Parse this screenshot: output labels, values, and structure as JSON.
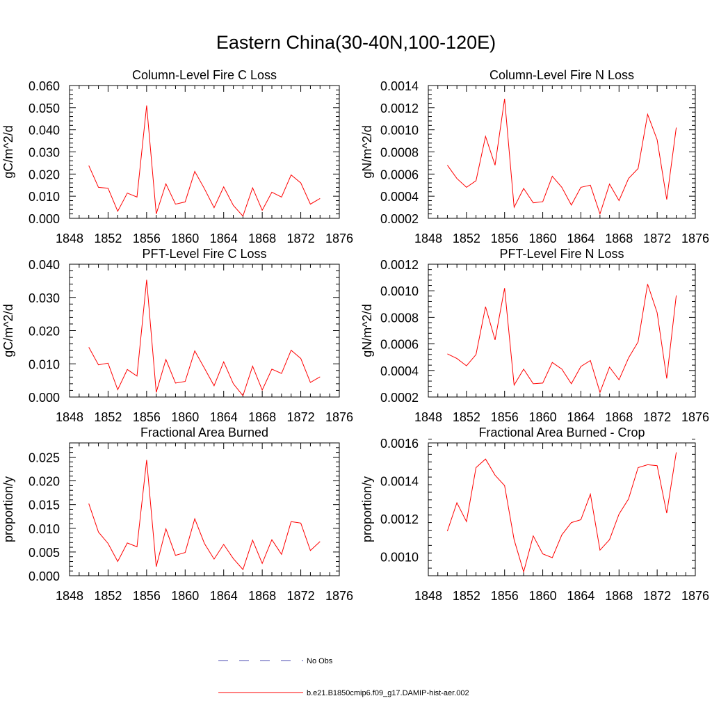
{
  "figure": {
    "title": "Eastern China(30-40N,100-120E)"
  },
  "legend": [
    {
      "label": "No Obs",
      "color": "#4a4ab0",
      "dash": true
    },
    {
      "label": "b.e21.B1850cmip6.f09_g17.DAMIP-hist-aer.002",
      "color": "#ff0000",
      "dash": false
    }
  ],
  "colors": {
    "series": "#ff0000",
    "axis": "#000000"
  },
  "chart_data": [
    {
      "type": "line",
      "title": "Column-Level Fire C Loss",
      "ylabel": "gC/m^2/d",
      "xlim": [
        1848,
        1876
      ],
      "ylim": [
        0,
        0.06
      ],
      "xticks": [
        "1848",
        "1852",
        "1856",
        "1860",
        "1864",
        "1868",
        "1872",
        "1876"
      ],
      "yticks": [
        "0.000",
        "0.010",
        "0.020",
        "0.030",
        "0.040",
        "0.050",
        "0.060"
      ],
      "x": [
        1850,
        1851,
        1852,
        1853,
        1854,
        1855,
        1856,
        1857,
        1858,
        1859,
        1860,
        1861,
        1862,
        1863,
        1864,
        1865,
        1866,
        1867,
        1868,
        1869,
        1870,
        1871,
        1872,
        1873,
        1874
      ],
      "series": [
        {
          "values": [
            0.0238,
            0.014,
            0.0136,
            0.0032,
            0.0114,
            0.0096,
            0.051,
            0.002,
            0.0156,
            0.0064,
            0.0074,
            0.0212,
            0.0134,
            0.0048,
            0.0142,
            0.0058,
            0.001,
            0.0138,
            0.0036,
            0.0118,
            0.0096,
            0.0196,
            0.016,
            0.0064,
            0.009
          ]
        }
      ]
    },
    {
      "type": "line",
      "title": "Column-Level Fire N Loss",
      "ylabel": "gN/m^2/d",
      "xlim": [
        1848,
        1876
      ],
      "ylim": [
        0.0002,
        0.0014
      ],
      "xticks": [
        "1848",
        "1852",
        "1856",
        "1860",
        "1864",
        "1868",
        "1872",
        "1876"
      ],
      "yticks": [
        "0.0002",
        "0.0004",
        "0.0006",
        "0.0008",
        "0.0010",
        "0.0012",
        "0.0014"
      ],
      "x": [
        1850,
        1851,
        1852,
        1853,
        1854,
        1855,
        1856,
        1857,
        1858,
        1859,
        1860,
        1861,
        1862,
        1863,
        1864,
        1865,
        1866,
        1867,
        1868,
        1869,
        1870,
        1871,
        1872,
        1873,
        1874
      ],
      "series": [
        {
          "values": [
            0.00068,
            0.00056,
            0.00048,
            0.00054,
            0.00094,
            0.00068,
            0.00128,
            0.0003,
            0.00047,
            0.00034,
            0.00035,
            0.00058,
            0.00048,
            0.00032,
            0.00048,
            0.0005,
            0.00024,
            0.00051,
            0.00036,
            0.00056,
            0.00065,
            0.00114,
            0.00091,
            0.00037,
            0.00102
          ]
        }
      ]
    },
    {
      "type": "line",
      "title": "PFT-Level Fire C Loss",
      "ylabel": "gC/m^2/d",
      "xlim": [
        1848,
        1876
      ],
      "ylim": [
        0,
        0.04
      ],
      "xticks": [
        "1848",
        "1852",
        "1856",
        "1860",
        "1864",
        "1868",
        "1872",
        "1876"
      ],
      "yticks": [
        "0.000",
        "0.010",
        "0.020",
        "0.030",
        "0.040"
      ],
      "x": [
        1850,
        1851,
        1852,
        1853,
        1854,
        1855,
        1856,
        1857,
        1858,
        1859,
        1860,
        1861,
        1862,
        1863,
        1864,
        1865,
        1866,
        1867,
        1868,
        1869,
        1870,
        1871,
        1872,
        1873,
        1874
      ],
      "series": [
        {
          "values": [
            0.015,
            0.0097,
            0.0102,
            0.0022,
            0.0083,
            0.0063,
            0.0353,
            0.0014,
            0.0113,
            0.0042,
            0.0047,
            0.0139,
            0.0087,
            0.0034,
            0.0106,
            0.004,
            0.0004,
            0.0093,
            0.0021,
            0.0084,
            0.0071,
            0.0141,
            0.0116,
            0.0044,
            0.0061
          ]
        }
      ]
    },
    {
      "type": "line",
      "title": "PFT-Level Fire N Loss",
      "ylabel": "gN/m^2/d",
      "xlim": [
        1848,
        1876
      ],
      "ylim": [
        0.0002,
        0.0012
      ],
      "xticks": [
        "1848",
        "1852",
        "1856",
        "1860",
        "1864",
        "1868",
        "1872",
        "1876"
      ],
      "yticks": [
        "0.0002",
        "0.0004",
        "0.0006",
        "0.0008",
        "0.0010",
        "0.0012"
      ],
      "x": [
        1850,
        1851,
        1852,
        1853,
        1854,
        1855,
        1856,
        1857,
        1858,
        1859,
        1860,
        1861,
        1862,
        1863,
        1864,
        1865,
        1866,
        1867,
        1868,
        1869,
        1870,
        1871,
        1872,
        1873,
        1874
      ],
      "series": [
        {
          "values": [
            0.000525,
            0.00049,
            0.000435,
            0.00052,
            0.00088,
            0.00063,
            0.00102,
            0.00029,
            0.00041,
            0.0003,
            0.000305,
            0.00046,
            0.00041,
            0.0003,
            0.00043,
            0.000475,
            0.000235,
            0.000425,
            0.00033,
            0.000495,
            0.000615,
            0.00105,
            0.000835,
            0.00034,
            0.000965
          ]
        }
      ]
    },
    {
      "type": "line",
      "title": "Fractional Area Burned",
      "ylabel": "proportion/y",
      "xlim": [
        1848,
        1876
      ],
      "ylim": [
        0,
        0.028
      ],
      "xticks": [
        "1848",
        "1852",
        "1856",
        "1860",
        "1864",
        "1868",
        "1872",
        "1876"
      ],
      "yticks": [
        "0.000",
        "0.005",
        "0.010",
        "0.015",
        "0.020",
        "0.025"
      ],
      "x": [
        1850,
        1851,
        1852,
        1853,
        1854,
        1855,
        1856,
        1857,
        1858,
        1859,
        1860,
        1861,
        1862,
        1863,
        1864,
        1865,
        1866,
        1867,
        1868,
        1869,
        1870,
        1871,
        1872,
        1873,
        1874
      ],
      "series": [
        {
          "values": [
            0.0152,
            0.0092,
            0.0068,
            0.003,
            0.0069,
            0.0061,
            0.0244,
            0.0019,
            0.0099,
            0.0043,
            0.0049,
            0.012,
            0.0068,
            0.0035,
            0.0066,
            0.0036,
            0.0013,
            0.0075,
            0.0026,
            0.0076,
            0.0045,
            0.0114,
            0.0111,
            0.0053,
            0.0072
          ]
        }
      ]
    },
    {
      "type": "line",
      "title": "Fractional Area Burned - Crop",
      "ylabel": "proportion/y",
      "xlim": [
        1848,
        1876
      ],
      "ylim": [
        0.0009,
        0.0016
      ],
      "xticks": [
        "1848",
        "1852",
        "1856",
        "1860",
        "1864",
        "1868",
        "1872",
        "1876"
      ],
      "yticks": [
        "0.0010",
        "0.0012",
        "0.0014",
        "0.0016"
      ],
      "x": [
        1850,
        1851,
        1852,
        1853,
        1854,
        1855,
        1856,
        1857,
        1858,
        1859,
        1860,
        1861,
        1862,
        1863,
        1864,
        1865,
        1866,
        1867,
        1868,
        1869,
        1870,
        1871,
        1872,
        1873,
        1874
      ],
      "series": [
        {
          "values": [
            0.001135,
            0.001285,
            0.001185,
            0.00147,
            0.001515,
            0.00143,
            0.001375,
            0.00109,
            0.00092,
            0.00111,
            0.001015,
            0.000995,
            0.001115,
            0.00118,
            0.001195,
            0.00133,
            0.001035,
            0.00109,
            0.001225,
            0.001305,
            0.00147,
            0.001485,
            0.00148,
            0.00123,
            0.00155
          ]
        }
      ]
    }
  ]
}
